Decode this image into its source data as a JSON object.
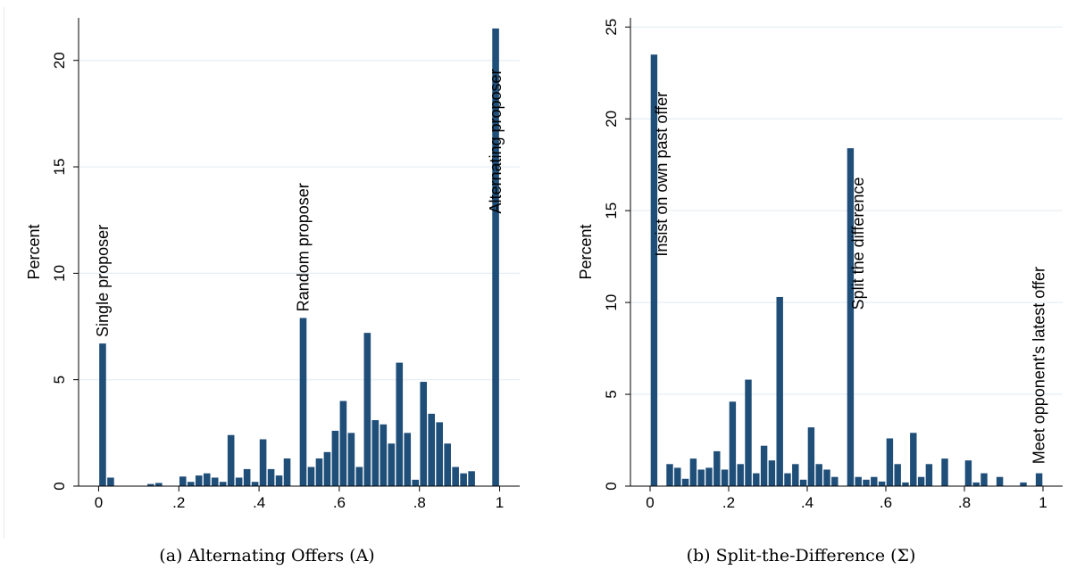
{
  "captions": {
    "a": "(a) Alternating Offers (A)",
    "b": "(b) Split-the-Difference (Σ)"
  },
  "colors": {
    "bar": "#1f4e79",
    "grid": "#e6eef3",
    "axis": "#000000"
  },
  "chart_data": [
    {
      "type": "bar",
      "title": "",
      "xlabel": "",
      "ylabel": "Percent",
      "xlim": [
        -0.05,
        1.05
      ],
      "ylim": [
        0,
        22
      ],
      "bin_width": 0.0196,
      "xticks": [
        0,
        0.2,
        0.4,
        0.6,
        0.8,
        1
      ],
      "xtick_labels": [
        "0",
        ".2",
        ".4",
        ".6",
        ".8",
        "1"
      ],
      "yticks": [
        0,
        5,
        10,
        15,
        20
      ],
      "ytick_labels": [
        "0",
        "5",
        "10",
        "15",
        "20"
      ],
      "grid": true,
      "x": [
        0.01,
        0.03,
        0.13,
        0.15,
        0.21,
        0.23,
        0.25,
        0.27,
        0.29,
        0.31,
        0.33,
        0.35,
        0.37,
        0.39,
        0.41,
        0.43,
        0.45,
        0.47,
        0.51,
        0.53,
        0.55,
        0.57,
        0.59,
        0.61,
        0.63,
        0.65,
        0.67,
        0.69,
        0.71,
        0.73,
        0.75,
        0.77,
        0.79,
        0.81,
        0.83,
        0.85,
        0.87,
        0.89,
        0.91,
        0.93,
        0.99
      ],
      "values": [
        6.7,
        0.4,
        0.1,
        0.15,
        0.45,
        0.2,
        0.5,
        0.6,
        0.4,
        0.2,
        2.4,
        0.4,
        0.8,
        0.2,
        2.2,
        0.8,
        0.5,
        1.3,
        7.9,
        0.9,
        1.3,
        1.6,
        2.6,
        4.0,
        2.5,
        0.9,
        7.2,
        3.1,
        2.9,
        2.0,
        5.8,
        2.5,
        0.3,
        4.9,
        3.4,
        3.0,
        2.0,
        0.9,
        0.6,
        0.7,
        21.5
      ],
      "annotations": [
        {
          "text": "Single proposer",
          "x": 0.01,
          "y": 7.0
        },
        {
          "text": "Random proposer",
          "x": 0.51,
          "y": 8.2
        },
        {
          "text": "Alternating proposer",
          "x": 0.99,
          "y": 12.8
        }
      ]
    },
    {
      "type": "bar",
      "title": "",
      "xlabel": "",
      "ylabel": "Percent",
      "xlim": [
        -0.05,
        1.05
      ],
      "ylim": [
        0,
        25.5
      ],
      "bin_width": 0.0196,
      "xticks": [
        0,
        0.2,
        0.4,
        0.6,
        0.8,
        1
      ],
      "xtick_labels": [
        "0",
        ".2",
        ".4",
        ".6",
        ".8",
        "1"
      ],
      "yticks": [
        0,
        5,
        10,
        15,
        20,
        25
      ],
      "ytick_labels": [
        "0",
        "5",
        "10",
        "15",
        "20",
        "25"
      ],
      "grid": true,
      "x": [
        0.01,
        0.05,
        0.07,
        0.09,
        0.11,
        0.13,
        0.15,
        0.17,
        0.19,
        0.21,
        0.23,
        0.25,
        0.27,
        0.29,
        0.31,
        0.33,
        0.35,
        0.37,
        0.39,
        0.41,
        0.43,
        0.45,
        0.47,
        0.51,
        0.53,
        0.55,
        0.57,
        0.59,
        0.61,
        0.63,
        0.65,
        0.67,
        0.69,
        0.71,
        0.75,
        0.81,
        0.83,
        0.85,
        0.89,
        0.95,
        0.99
      ],
      "values": [
        23.5,
        1.2,
        1.0,
        0.4,
        1.5,
        0.9,
        1.0,
        1.9,
        0.9,
        4.6,
        1.2,
        5.8,
        0.7,
        2.2,
        1.4,
        10.3,
        0.7,
        1.2,
        0.35,
        3.2,
        1.2,
        0.9,
        0.5,
        18.4,
        0.5,
        0.35,
        0.5,
        0.25,
        2.6,
        1.2,
        0.2,
        2.9,
        0.5,
        1.2,
        1.5,
        1.4,
        0.2,
        0.7,
        0.5,
        0.2,
        0.7
      ],
      "annotations": [
        {
          "text": "Insist on own past offer",
          "x": 0.03,
          "y": 12.5
        },
        {
          "text": "Split the difference",
          "x": 0.53,
          "y": 9.6
        },
        {
          "text": "Meet opponent's latest offer",
          "x": 0.99,
          "y": 1.2
        }
      ]
    }
  ]
}
